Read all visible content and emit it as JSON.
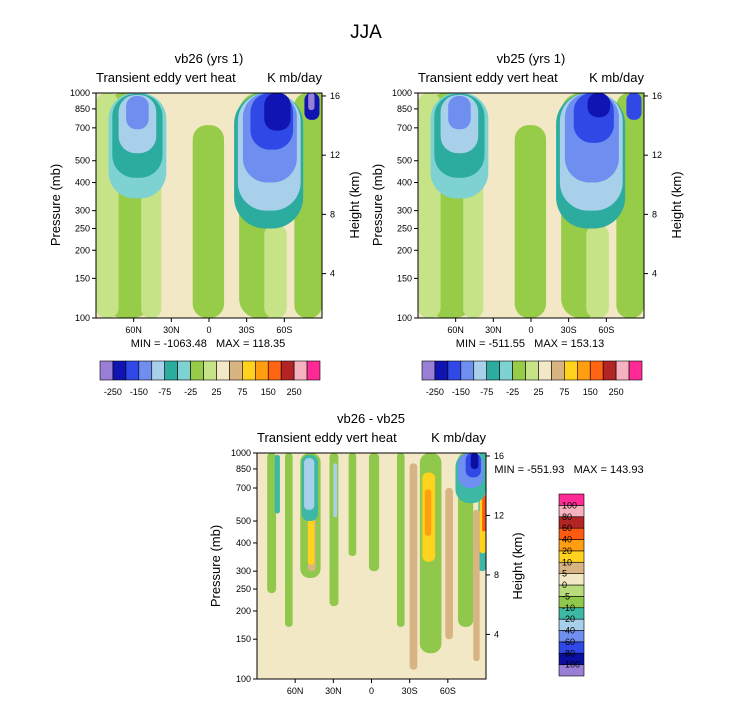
{
  "figure": {
    "title": "JJA"
  },
  "palettes": {
    "p1": [
      "#9a7fd6",
      "#0f14b2",
      "#2f48e6",
      "#6f8ff0",
      "#a8d0ea",
      "#2cab9f",
      "#7ed2d2",
      "#97cc49",
      "#c6e387",
      "#f3e8c6",
      "#d8b482",
      "#ffd21e",
      "#ff9e11",
      "#ff6412",
      "#b32424",
      "#f7b2bf",
      "#ff2a95"
    ],
    "p2": [
      "#9a7fd6",
      "#0a0fa0",
      "#2f48e6",
      "#6f8ff0",
      "#a8d0ea",
      "#3db8a5",
      "#8fc84a",
      "#b8dc7c",
      "#f3e8c6",
      "#d8b482",
      "#ffd21e",
      "#ff9e11",
      "#ff5a12",
      "#b32424",
      "#f7b2bf",
      "#ff2a95"
    ]
  },
  "chart_data": [
    {
      "id": "vb26",
      "type": "heatmap",
      "title": "vb26 (yrs 1)",
      "left_subtitle": "Transient eddy vert heat",
      "right_subtitle": "K mb/day",
      "ylabel": "Pressure (mb)",
      "ylabel_right": "Height (km)",
      "y_ticks": [
        "100",
        "150",
        "200",
        "250",
        "300",
        "400",
        "500",
        "700",
        "850",
        "1000"
      ],
      "y_ticks_values": [
        100,
        150,
        200,
        250,
        300,
        400,
        500,
        700,
        850,
        1000
      ],
      "y_right_ticks": [
        "4",
        "8",
        "12",
        "16"
      ],
      "y_right_values": [
        4,
        8,
        12,
        16
      ],
      "x_ticks": [
        "60N",
        "30N",
        "0",
        "30S",
        "60S"
      ],
      "x_ticks_values": [
        60,
        30,
        0,
        -30,
        -60
      ],
      "xlim": [
        90,
        -90
      ],
      "ylim": [
        1000,
        100
      ],
      "min_label": "MIN = -1063.48",
      "max_label": "MAX = 118.35",
      "colorbar_labels": [
        "-250",
        "-150",
        "-75",
        "-25",
        "25",
        "75",
        "150",
        "250"
      ],
      "contour_levels": [
        -250,
        -200,
        -150,
        -100,
        -75,
        -50,
        -25,
        -10,
        0,
        10,
        25,
        50,
        75,
        100,
        150,
        200,
        250
      ],
      "palette": "p1",
      "background_level": 9,
      "features": [
        {
          "level": 7,
          "lat": [
            90,
            40
          ],
          "p": [
            100,
            1000
          ]
        },
        {
          "level": 8,
          "lat": [
            90,
            72
          ],
          "p": [
            100,
            1000
          ]
        },
        {
          "level": 8,
          "lat": [
            54,
            38
          ],
          "p": [
            100,
            620
          ]
        },
        {
          "level": 7,
          "lat": [
            13,
            -12
          ],
          "p": [
            100,
            720
          ]
        },
        {
          "level": 7,
          "lat": [
            -24,
            -58
          ],
          "p": [
            100,
            1000
          ]
        },
        {
          "level": 7,
          "lat": [
            -68,
            -90
          ],
          "p": [
            100,
            1000
          ]
        },
        {
          "level": 8,
          "lat": [
            -44,
            -62
          ],
          "p": [
            100,
            260
          ]
        },
        {
          "level": 7,
          "lat": [
            -85,
            -90
          ],
          "p": [
            130,
            1000
          ]
        },
        {
          "level": 6,
          "lat": [
            80,
            34
          ],
          "p": [
            340,
            1000
          ]
        },
        {
          "level": 5,
          "lat": [
            77,
            37
          ],
          "p": [
            420,
            990
          ]
        },
        {
          "level": 4,
          "lat": [
            72,
            42
          ],
          "p": [
            540,
            980
          ]
        },
        {
          "level": 3,
          "lat": [
            66,
            48
          ],
          "p": [
            690,
            970
          ]
        },
        {
          "level": 5,
          "lat": [
            -20,
            -75
          ],
          "p": [
            250,
            1000
          ]
        },
        {
          "level": 4,
          "lat": [
            -23,
            -73
          ],
          "p": [
            300,
            1000
          ]
        },
        {
          "level": 3,
          "lat": [
            -27,
            -70
          ],
          "p": [
            400,
            1000
          ]
        },
        {
          "level": 2,
          "lat": [
            -33,
            -67
          ],
          "p": [
            560,
            1000
          ]
        },
        {
          "level": 1,
          "lat": [
            -44,
            -65
          ],
          "p": [
            680,
            1000
          ]
        },
        {
          "level": 1,
          "lat": [
            -76,
            -88
          ],
          "p": [
            760,
            1000
          ]
        },
        {
          "level": 0,
          "lat": [
            -79,
            -84
          ],
          "p": [
            840,
            1000
          ]
        }
      ]
    },
    {
      "id": "vb25",
      "type": "heatmap",
      "title": "vb25 (yrs 1)",
      "left_subtitle": "Transient eddy vert heat",
      "right_subtitle": "K mb/day",
      "ylabel": "Pressure (mb)",
      "ylabel_right": "Height (km)",
      "y_ticks": [
        "100",
        "150",
        "200",
        "250",
        "300",
        "400",
        "500",
        "700",
        "850",
        "1000"
      ],
      "y_ticks_values": [
        100,
        150,
        200,
        250,
        300,
        400,
        500,
        700,
        850,
        1000
      ],
      "y_right_ticks": [
        "4",
        "8",
        "12",
        "16"
      ],
      "y_right_values": [
        4,
        8,
        12,
        16
      ],
      "x_ticks": [
        "60N",
        "30N",
        "0",
        "30S",
        "60S"
      ],
      "x_ticks_values": [
        60,
        30,
        0,
        -30,
        -60
      ],
      "xlim": [
        90,
        -90
      ],
      "ylim": [
        1000,
        100
      ],
      "min_label": "MIN = -511.55",
      "max_label": "MAX = 153.13",
      "colorbar_labels": [
        "-250",
        "-150",
        "-75",
        "-25",
        "25",
        "75",
        "150",
        "250"
      ],
      "contour_levels": [
        -250,
        -200,
        -150,
        -100,
        -75,
        -50,
        -25,
        -10,
        0,
        10,
        25,
        50,
        75,
        100,
        150,
        200,
        250
      ],
      "palette": "p1",
      "background_level": 9,
      "features": [
        {
          "level": 7,
          "lat": [
            90,
            40
          ],
          "p": [
            100,
            1000
          ]
        },
        {
          "level": 8,
          "lat": [
            90,
            72
          ],
          "p": [
            100,
            1000
          ]
        },
        {
          "level": 8,
          "lat": [
            54,
            38
          ],
          "p": [
            100,
            620
          ]
        },
        {
          "level": 7,
          "lat": [
            13,
            -12
          ],
          "p": [
            100,
            720
          ]
        },
        {
          "level": 7,
          "lat": [
            -24,
            -58
          ],
          "p": [
            100,
            1000
          ]
        },
        {
          "level": 7,
          "lat": [
            -68,
            -90
          ],
          "p": [
            100,
            1000
          ]
        },
        {
          "level": 8,
          "lat": [
            -44,
            -62
          ],
          "p": [
            100,
            260
          ]
        },
        {
          "level": 7,
          "lat": [
            -85,
            -90
          ],
          "p": [
            130,
            1000
          ]
        },
        {
          "level": 6,
          "lat": [
            80,
            34
          ],
          "p": [
            340,
            1000
          ]
        },
        {
          "level": 5,
          "lat": [
            77,
            37
          ],
          "p": [
            420,
            990
          ]
        },
        {
          "level": 4,
          "lat": [
            72,
            42
          ],
          "p": [
            540,
            980
          ]
        },
        {
          "level": 3,
          "lat": [
            66,
            48
          ],
          "p": [
            690,
            970
          ]
        },
        {
          "level": 5,
          "lat": [
            -20,
            -75
          ],
          "p": [
            250,
            1000
          ]
        },
        {
          "level": 4,
          "lat": [
            -23,
            -73
          ],
          "p": [
            300,
            1000
          ]
        },
        {
          "level": 3,
          "lat": [
            -27,
            -70
          ],
          "p": [
            400,
            1000
          ]
        },
        {
          "level": 2,
          "lat": [
            -34,
            -66
          ],
          "p": [
            600,
            1000
          ]
        },
        {
          "level": 1,
          "lat": [
            -45,
            -63
          ],
          "p": [
            780,
            1000
          ]
        },
        {
          "level": 2,
          "lat": [
            -76,
            -88
          ],
          "p": [
            760,
            1000
          ]
        }
      ]
    },
    {
      "id": "diff",
      "type": "heatmap",
      "title": "vb26 - vb25",
      "left_subtitle": "Transient eddy vert heat",
      "right_subtitle": "K mb/day",
      "ylabel": "Pressure (mb)",
      "ylabel_right": "Height (km)",
      "y_ticks": [
        "100",
        "150",
        "200",
        "250",
        "300",
        "400",
        "500",
        "700",
        "850",
        "1000"
      ],
      "y_ticks_values": [
        100,
        150,
        200,
        250,
        300,
        400,
        500,
        700,
        850,
        1000
      ],
      "y_right_ticks": [
        "4",
        "8",
        "12",
        "16"
      ],
      "y_right_values": [
        4,
        8,
        12,
        16
      ],
      "x_ticks": [
        "60N",
        "30N",
        "0",
        "30S",
        "60S"
      ],
      "x_ticks_values": [
        60,
        30,
        0,
        -30,
        -60
      ],
      "xlim": [
        90,
        -90
      ],
      "ylim": [
        1000,
        100
      ],
      "min_label": "MIN = -551.93",
      "max_label": "MAX = 143.93",
      "colorbar_labels": [
        "100",
        "80",
        "60",
        "40",
        "20",
        "10",
        "5",
        "0",
        "-5",
        "-10",
        "-20",
        "-40",
        "-60",
        "-80",
        "-100"
      ],
      "contour_levels": [
        -100,
        -80,
        -60,
        -40,
        -20,
        -10,
        -5,
        0,
        5,
        10,
        20,
        40,
        60,
        80,
        100
      ],
      "palette": "p2",
      "background_level": 8,
      "features": [
        {
          "level": 6,
          "lat": [
            82,
            75
          ],
          "p": [
            240,
            1000
          ]
        },
        {
          "level": 6,
          "lat": [
            68,
            62
          ],
          "p": [
            170,
            1000
          ]
        },
        {
          "level": 6,
          "lat": [
            56,
            40
          ],
          "p": [
            280,
            1000
          ]
        },
        {
          "level": 6,
          "lat": [
            33,
            26
          ],
          "p": [
            210,
            1000
          ]
        },
        {
          "level": 6,
          "lat": [
            18,
            12
          ],
          "p": [
            350,
            1000
          ]
        },
        {
          "level": 6,
          "lat": [
            2,
            -6
          ],
          "p": [
            300,
            1000
          ]
        },
        {
          "level": 6,
          "lat": [
            -20,
            -26
          ],
          "p": [
            170,
            1000
          ]
        },
        {
          "level": 6,
          "lat": [
            -38,
            -55
          ],
          "p": [
            130,
            1000
          ]
        },
        {
          "level": 6,
          "lat": [
            -68,
            -80
          ],
          "p": [
            170,
            1000
          ]
        },
        {
          "level": 5,
          "lat": [
            -84,
            -90
          ],
          "p": [
            300,
            1000
          ]
        },
        {
          "level": 9,
          "lat": [
            50,
            44
          ],
          "p": [
            300,
            820
          ]
        },
        {
          "level": 9,
          "lat": [
            -30,
            -36
          ],
          "p": [
            110,
            900
          ]
        },
        {
          "level": 9,
          "lat": [
            -58,
            -64
          ],
          "p": [
            150,
            700
          ]
        },
        {
          "level": 9,
          "lat": [
            -80,
            -85
          ],
          "p": [
            120,
            560
          ]
        },
        {
          "level": 10,
          "lat": [
            -40,
            -50
          ],
          "p": [
            330,
            820
          ]
        },
        {
          "level": 10,
          "lat": [
            -85,
            -90
          ],
          "p": [
            360,
            760
          ]
        },
        {
          "level": 10,
          "lat": [
            50,
            45
          ],
          "p": [
            320,
            560
          ]
        },
        {
          "level": 11,
          "lat": [
            -42,
            -47
          ],
          "p": [
            430,
            690
          ]
        },
        {
          "level": 12,
          "lat": [
            -87,
            -90
          ],
          "p": [
            450,
            650
          ]
        },
        {
          "level": 5,
          "lat": [
            55,
            42
          ],
          "p": [
            500,
            980
          ]
        },
        {
          "level": 4,
          "lat": [
            53,
            45
          ],
          "p": [
            560,
            950
          ]
        },
        {
          "level": 5,
          "lat": [
            76,
            72
          ],
          "p": [
            540,
            980
          ]
        },
        {
          "level": 4,
          "lat": [
            30,
            27
          ],
          "p": [
            520,
            900
          ]
        },
        {
          "level": 5,
          "lat": [
            -66,
            -90
          ],
          "p": [
            600,
            1000
          ]
        },
        {
          "level": 3,
          "lat": [
            -68,
            -88
          ],
          "p": [
            700,
            1000
          ]
        },
        {
          "level": 2,
          "lat": [
            -74,
            -86
          ],
          "p": [
            780,
            1000
          ]
        },
        {
          "level": 1,
          "lat": [
            -78,
            -84
          ],
          "p": [
            850,
            1000
          ]
        }
      ]
    }
  ]
}
